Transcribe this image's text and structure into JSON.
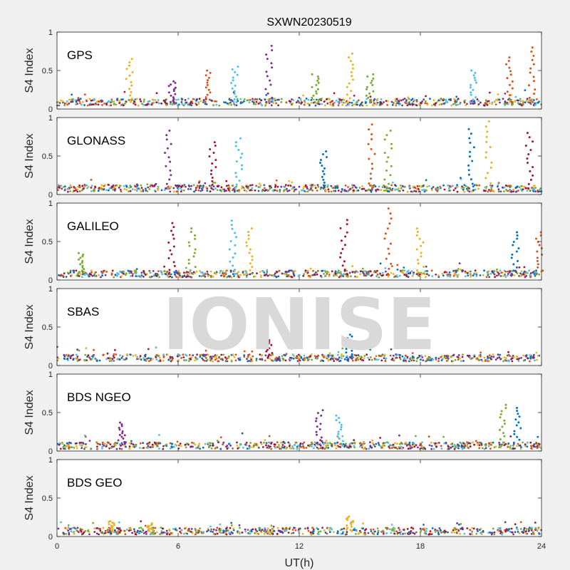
{
  "chart_data": {
    "type": "scatter",
    "title": "SXWN20230519",
    "xlabel": "UT(h)",
    "ylabel": "S4 Index",
    "watermark": "IONISE",
    "xlim": [
      0,
      24
    ],
    "ylim": [
      0,
      1
    ],
    "xticks": [
      "0",
      "6",
      "12",
      "18",
      "24"
    ],
    "yticks": [
      "0",
      "0.5",
      "1"
    ],
    "grid": false,
    "series_colors": [
      "#0072BD",
      "#D95319",
      "#EDB120",
      "#7E2F8E",
      "#77AC30",
      "#4DBEEE",
      "#A2142F"
    ],
    "panels": [
      {
        "label": "GPS",
        "baseline": 0.09,
        "spikes": [
          {
            "x": 3.6,
            "y": 0.65,
            "c": 2
          },
          {
            "x": 5.7,
            "y": 0.36,
            "c": 3
          },
          {
            "x": 7.5,
            "y": 0.5,
            "c": 1
          },
          {
            "x": 8.8,
            "y": 0.55,
            "c": 5
          },
          {
            "x": 10.5,
            "y": 0.82,
            "c": 3
          },
          {
            "x": 12.8,
            "y": 0.45,
            "c": 4
          },
          {
            "x": 14.5,
            "y": 0.72,
            "c": 2
          },
          {
            "x": 15.5,
            "y": 0.45,
            "c": 4
          },
          {
            "x": 20.6,
            "y": 0.5,
            "c": 5
          },
          {
            "x": 22.4,
            "y": 0.67,
            "c": 1
          },
          {
            "x": 23.5,
            "y": 0.8,
            "c": 1
          }
        ]
      },
      {
        "label": "GLONASS",
        "baseline": 0.08,
        "spikes": [
          {
            "x": 5.5,
            "y": 0.83,
            "c": 3
          },
          {
            "x": 7.7,
            "y": 0.68,
            "c": 6
          },
          {
            "x": 9.0,
            "y": 0.73,
            "c": 5
          },
          {
            "x": 13.2,
            "y": 0.56,
            "c": 0
          },
          {
            "x": 15.6,
            "y": 0.91,
            "c": 1
          },
          {
            "x": 16.4,
            "y": 0.83,
            "c": 4
          },
          {
            "x": 20.5,
            "y": 0.85,
            "c": 0
          },
          {
            "x": 21.4,
            "y": 0.95,
            "c": 2
          },
          {
            "x": 23.4,
            "y": 0.8,
            "c": 6
          }
        ]
      },
      {
        "label": "GALILEO",
        "baseline": 0.08,
        "spikes": [
          {
            "x": 1.2,
            "y": 0.35,
            "c": 4
          },
          {
            "x": 5.7,
            "y": 0.74,
            "c": 6
          },
          {
            "x": 6.7,
            "y": 0.67,
            "c": 4
          },
          {
            "x": 8.7,
            "y": 0.77,
            "c": 5
          },
          {
            "x": 9.5,
            "y": 0.67,
            "c": 2
          },
          {
            "x": 14.2,
            "y": 0.78,
            "c": 6
          },
          {
            "x": 16.4,
            "y": 0.93,
            "c": 1
          },
          {
            "x": 18.0,
            "y": 0.67,
            "c": 2
          },
          {
            "x": 22.7,
            "y": 0.62,
            "c": 0
          },
          {
            "x": 23.9,
            "y": 0.62,
            "c": 1
          }
        ]
      },
      {
        "label": "SBAS",
        "baseline": 0.1,
        "spikes": [
          {
            "x": 10.5,
            "y": 0.37,
            "c": 6
          },
          {
            "x": 14.5,
            "y": 0.4,
            "c": 0
          }
        ]
      },
      {
        "label": "BDS NGEO",
        "baseline": 0.07,
        "spikes": [
          {
            "x": 3.2,
            "y": 0.37,
            "c": 3
          },
          {
            "x": 13.0,
            "y": 0.53,
            "c": 3
          },
          {
            "x": 14.0,
            "y": 0.46,
            "c": 5
          },
          {
            "x": 22.1,
            "y": 0.6,
            "c": 4
          },
          {
            "x": 22.8,
            "y": 0.56,
            "c": 0
          }
        ]
      },
      {
        "label": "BDS GEO",
        "baseline": 0.07,
        "spikes": [
          {
            "x": 2.7,
            "y": 0.2,
            "c": 2
          },
          {
            "x": 4.6,
            "y": 0.17,
            "c": 2
          },
          {
            "x": 14.5,
            "y": 0.26,
            "c": 2
          }
        ]
      }
    ]
  }
}
